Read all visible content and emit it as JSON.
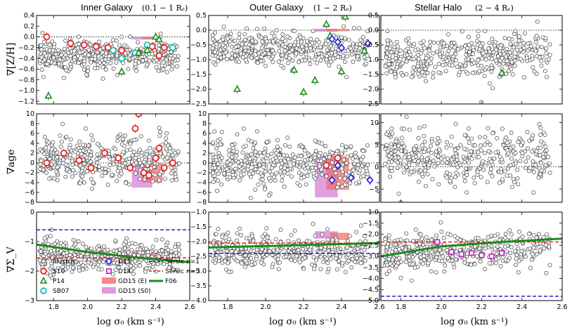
{
  "figure": {
    "x_axis_label": "log σ₀   (km s⁻¹)",
    "columns": [
      {
        "title": "Inner Galaxy",
        "subtitle": "(0.1 − 1 Rₑ)"
      },
      {
        "title": "Outer Galaxy",
        "subtitle": "(1 − 2 Rₑ)"
      },
      {
        "title": "Stellar Halo",
        "subtitle": "(2 − 4 Rₑ)"
      }
    ],
    "row_labels": [
      "∇[Z/H]",
      "∇age",
      "∇Σ_V"
    ],
    "colors": {
      "illustris": "#444444",
      "S10": "#e8211f",
      "P14": "#1a8f1a",
      "SB07": "#1bb5b5",
      "D15": "#1f1fd6",
      "D14": "#c11fc1",
      "GD15E": "#f26b6b",
      "GD15S0": "#d77ed7",
      "F06": "#1a8a1a",
      "sersic1": "#1f1fd6",
      "sersic5": "#e8211f"
    }
  },
  "chart_data": [
    {
      "type": "scatter",
      "panel": "inner-zh",
      "xlim": [
        1.7,
        2.6
      ],
      "ylim": [
        -1.25,
        0.4
      ],
      "xticks": [
        "1.8",
        "2.0",
        "2.2",
        "2.4",
        "2.6"
      ],
      "yticks": [
        "0.4",
        "0.2",
        "0.0",
        "−0.2",
        "−0.4",
        "−0.6",
        "−0.8",
        "−1.0",
        "−1.2"
      ],
      "illustris_mean": -0.35,
      "illustris_spread": 0.15,
      "illustris_trend": 0.0,
      "S10": [
        [
          1.76,
          0.0
        ],
        [
          1.9,
          -0.12
        ],
        [
          1.98,
          -0.15
        ],
        [
          2.05,
          -0.18
        ],
        [
          2.12,
          -0.2
        ],
        [
          2.2,
          -0.25
        ],
        [
          2.3,
          -0.3
        ],
        [
          2.38,
          -0.18
        ],
        [
          2.42,
          -0.35
        ],
        [
          2.45,
          -0.2
        ]
      ],
      "P14": [
        [
          1.77,
          -1.1
        ],
        [
          2.2,
          -0.65
        ],
        [
          2.3,
          -0.3
        ],
        [
          2.35,
          -0.25
        ],
        [
          2.4,
          0.0
        ],
        [
          2.42,
          -0.05
        ]
      ],
      "SB07": [
        [
          2.15,
          -0.25
        ],
        [
          2.2,
          -0.4
        ],
        [
          2.28,
          -0.3
        ],
        [
          2.35,
          -0.15
        ],
        [
          2.5,
          -0.2
        ]
      ]
    },
    {
      "type": "scatter",
      "panel": "outer-zh",
      "xlim": [
        1.7,
        2.6
      ],
      "ylim": [
        -2.5,
        0.5
      ],
      "xticks": [
        "1.8",
        "2.0",
        "2.2",
        "2.4",
        "2.6"
      ],
      "yticks": [
        "0.5",
        "0.0",
        "−0.5",
        "−1.0",
        "−1.5",
        "−2.0",
        "−2.5"
      ],
      "illustris_mean": -0.65,
      "illustris_spread": 0.28,
      "illustris_trend": 0.0,
      "P14": [
        [
          1.85,
          -2.0
        ],
        [
          2.15,
          -1.35
        ],
        [
          2.2,
          -2.1
        ],
        [
          2.26,
          -1.7
        ],
        [
          2.32,
          0.2
        ],
        [
          2.34,
          -0.2
        ],
        [
          2.4,
          -1.4
        ],
        [
          2.42,
          0.45
        ],
        [
          2.52,
          -0.7
        ]
      ],
      "D15": [
        [
          2.35,
          -0.3
        ],
        [
          2.38,
          -0.4
        ],
        [
          2.4,
          -0.6
        ],
        [
          2.54,
          -0.45
        ]
      ]
    },
    {
      "type": "scatter",
      "panel": "halo-zh",
      "xlim": [
        1.7,
        2.6
      ],
      "ylim": [
        -2.5,
        0.5
      ],
      "xticks": [
        "1.8",
        "2.0",
        "2.2",
        "2.4",
        "2.6"
      ],
      "yticks": [
        "0.5",
        "0.0",
        "−0.5",
        "−1.0",
        "−1.5",
        "−2.0",
        "−2.5"
      ],
      "illustris_mean": -0.9,
      "illustris_spread": 0.35,
      "illustris_trend": 0.6,
      "P14": [
        [
          2.3,
          -1.45
        ]
      ]
    },
    {
      "type": "scatter",
      "panel": "inner-age",
      "xlim": [
        1.7,
        2.6
      ],
      "ylim": [
        -8,
        10
      ],
      "xticks": [
        "1.8",
        "2.0",
        "2.2",
        "2.4",
        "2.6"
      ],
      "yticks": [
        "10",
        "8",
        "6",
        "4",
        "2",
        "0",
        "−2",
        "−4",
        "−6",
        "−8"
      ],
      "illustris_mean": 0.5,
      "illustris_spread": 2.2,
      "illustris_trend": -1.5,
      "S10": [
        [
          1.76,
          0.0
        ],
        [
          1.86,
          2.0
        ],
        [
          1.95,
          0.5
        ],
        [
          2.02,
          -1.0
        ],
        [
          2.1,
          2.0
        ],
        [
          2.18,
          1.0
        ],
        [
          2.25,
          -1.0
        ],
        [
          2.28,
          7.0
        ],
        [
          2.3,
          10.0
        ],
        [
          2.33,
          -2.0
        ],
        [
          2.36,
          -2.5
        ],
        [
          2.4,
          1.0
        ],
        [
          2.42,
          3.0
        ],
        [
          2.45,
          -1.0
        ],
        [
          2.5,
          0.0
        ]
      ]
    },
    {
      "type": "scatter",
      "panel": "outer-age",
      "xlim": [
        1.7,
        2.6
      ],
      "ylim": [
        -8,
        10
      ],
      "xticks": [
        "1.8",
        "2.0",
        "2.2",
        "2.4",
        "2.6"
      ],
      "yticks": [
        "10",
        "8",
        "6",
        "4",
        "2",
        "0",
        "−2",
        "−4",
        "−6",
        "−8"
      ],
      "illustris_mean": 0.0,
      "illustris_spread": 2.4,
      "illustris_trend": 0.0,
      "S10": [
        [
          2.32,
          -0.5
        ],
        [
          2.38,
          1.0
        ]
      ],
      "D15": [
        [
          2.35,
          -3.5
        ],
        [
          2.38,
          -0.5
        ],
        [
          2.45,
          -3.0
        ],
        [
          2.55,
          -3.5
        ]
      ]
    },
    {
      "type": "scatter",
      "panel": "halo-age",
      "xlim": [
        1.7,
        2.6
      ],
      "ylim": [
        -8,
        12
      ],
      "xticks": [
        "1.8",
        "2.0",
        "2.2",
        "2.4",
        "2.6"
      ],
      "yticks": [
        "10",
        "5",
        "0",
        "−5"
      ],
      "illustris_mean": 2.0,
      "illustris_spread": 3.0,
      "illustris_trend": -3.0
    },
    {
      "type": "scatter",
      "panel": "inner-sigma",
      "xlim": [
        1.7,
        2.6
      ],
      "ylim": [
        -3.0,
        0.0
      ],
      "xticks": [
        "1.8",
        "2.0",
        "2.2",
        "2.4",
        "2.6"
      ],
      "yticks": [
        "0",
        "−1",
        "−2",
        "−3"
      ],
      "illustris_mean": -1.5,
      "illustris_spread": 0.25,
      "illustris_trend": 0.0,
      "sersic_n1": -0.6,
      "sersic_n5": -1.55,
      "F06": [
        [
          1.7,
          -1.1
        ],
        [
          2.0,
          -1.35
        ],
        [
          2.3,
          -1.55
        ],
        [
          2.6,
          -1.7
        ]
      ]
    },
    {
      "type": "scatter",
      "panel": "outer-sigma",
      "xlim": [
        1.7,
        2.6
      ],
      "ylim": [
        -4.0,
        -1.0
      ],
      "xticks": [
        "1.8",
        "2.0",
        "2.2",
        "2.4",
        "2.6"
      ],
      "yticks": [
        "−1.0",
        "−1.5",
        "−2.0",
        "−2.5",
        "−3.0",
        "−3.5",
        "−4.0"
      ],
      "illustris_mean": -2.3,
      "illustris_spread": 0.3,
      "illustris_trend": 0.0,
      "sersic_n1": -2.4,
      "sersic_n5": -2.05,
      "F06": [
        [
          1.7,
          -2.2
        ],
        [
          2.0,
          -2.15
        ],
        [
          2.3,
          -2.1
        ],
        [
          2.6,
          -2.05
        ]
      ]
    },
    {
      "type": "scatter",
      "panel": "halo-sigma",
      "xlim": [
        1.7,
        2.6
      ],
      "ylim": [
        -5.0,
        -1.0
      ],
      "xticks": [
        "1.8",
        "2.0",
        "2.2",
        "2.4",
        "2.6"
      ],
      "yticks": [
        "−1.0",
        "−1.5",
        "−2.0",
        "−2.5",
        "−3.0",
        "−3.5",
        "−4.0",
        "−4.5",
        "−5.0"
      ],
      "illustris_mean": -2.7,
      "illustris_spread": 0.4,
      "illustris_trend": 0.8,
      "sersic_n1": -4.8,
      "sersic_n5": -2.35,
      "F06": [
        [
          1.7,
          -3.0
        ],
        [
          2.0,
          -2.55
        ],
        [
          2.3,
          -2.35
        ],
        [
          2.6,
          -2.2
        ]
      ],
      "D14": [
        [
          1.98,
          -2.35
        ],
        [
          2.05,
          -2.8
        ],
        [
          2.1,
          -2.9
        ],
        [
          2.15,
          -2.85
        ],
        [
          2.2,
          -2.95
        ],
        [
          2.25,
          -3.0
        ],
        [
          2.3,
          -2.85
        ]
      ]
    }
  ],
  "legend": {
    "items": [
      {
        "key": "illustris",
        "label": "Illustris"
      },
      {
        "key": "D15",
        "label": "D15"
      },
      {
        "key": "sersic1",
        "label": "Sérsic n=1"
      },
      {
        "key": "S10",
        "label": "S10"
      },
      {
        "key": "D14",
        "label": "D14"
      },
      {
        "key": "sersic5",
        "label": "Sérsic n=5"
      },
      {
        "key": "P14",
        "label": "P14"
      },
      {
        "key": "GD15E",
        "label": "GD15 (E)"
      },
      {
        "key": "F06",
        "label": "F06"
      },
      {
        "key": "SB07",
        "label": "SB07"
      },
      {
        "key": "GD15S0",
        "label": "GD15 (S0)"
      }
    ]
  }
}
